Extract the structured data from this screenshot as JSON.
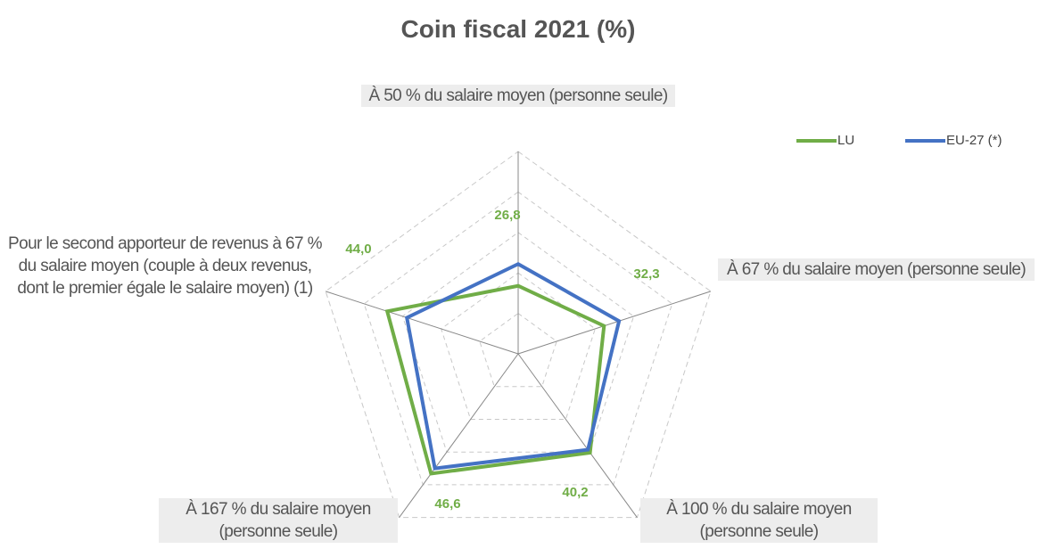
{
  "chart_data": {
    "type": "radar",
    "title": "Coin fiscal 2021 (%)",
    "categories": [
      "À 50 % du salaire moyen (personne seule)",
      "À 67 % du salaire moyen (personne seule)",
      "À 100 % du salaire moyen (personne seule)",
      "À 167 % du salaire moyen (personne seule)",
      "Pour le second apporteur de revenus à 67 % du salaire moyen (couple à deux revenus, dont le premier égale le salaire moyen) (1)"
    ],
    "series": [
      {
        "name": "LU",
        "color": "#70ad47",
        "values": [
          26.8,
          32.3,
          40.2,
          46.6,
          44.0
        ],
        "value_labels": [
          "26,8",
          "32,3",
          "40,2",
          "46,6",
          "44,0"
        ]
      },
      {
        "name": "EU-27 (*)",
        "color": "#4472c4",
        "values": [
          32.2,
          36.2,
          39.3,
          45.0,
          38.9
        ]
      }
    ],
    "rlim": [
      10,
      60
    ],
    "rticks": [
      10,
      20,
      30,
      40,
      50,
      60
    ],
    "grid": true
  }
}
